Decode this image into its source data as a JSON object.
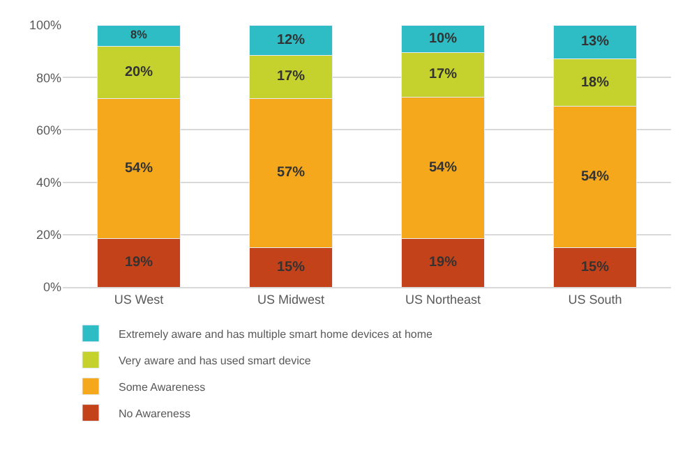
{
  "chart_data": {
    "type": "bar",
    "stacked": true,
    "categories": [
      "US West",
      "US Midwest",
      "US Northeast",
      "US South"
    ],
    "series": [
      {
        "name": "No Awareness",
        "color": "#c4421a",
        "values": [
          18.5,
          15,
          18.5,
          15
        ],
        "value_labels": [
          "19%",
          "15%",
          "19%",
          "15%"
        ]
      },
      {
        "name": "Some Awareness",
        "color": "#f5a81c",
        "values": [
          53.5,
          57,
          54,
          54
        ],
        "value_labels": [
          "54%",
          "57%",
          "54%",
          "54%"
        ]
      },
      {
        "name": "Very aware and has used smart device",
        "color": "#c5d22e",
        "values": [
          20,
          16.5,
          17,
          18
        ],
        "value_labels": [
          "20%",
          "17%",
          "17%",
          "18%"
        ]
      },
      {
        "name": "Extremely aware and has multiple smart home devices at home",
        "color": "#2ebdc4",
        "values": [
          8,
          11.5,
          10.5,
          13
        ],
        "value_labels": [
          "8%",
          "12%",
          "10%",
          "13%"
        ]
      }
    ],
    "ylim": [
      0,
      100
    ],
    "yticks": [
      {
        "value": 0,
        "label": "0%"
      },
      {
        "value": 20,
        "label": "20%"
      },
      {
        "value": 40,
        "label": "40%"
      },
      {
        "value": 60,
        "label": "60%"
      },
      {
        "value": 80,
        "label": "80%"
      },
      {
        "value": 100,
        "label": "100%"
      }
    ],
    "grid": "y",
    "legend": "bottom"
  }
}
